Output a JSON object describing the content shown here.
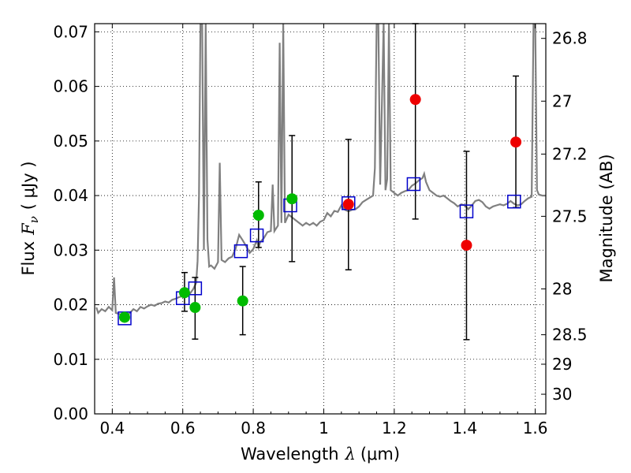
{
  "chart_data": {
    "type": "scatter",
    "title": "",
    "xlabel": "Wavelength",
    "xlabel_symbol": "λ",
    "xlabel_unit": "(μm)",
    "ylabel": "Flux",
    "ylabel_symbol": "F",
    "ylabel_sub": "ν",
    "ylabel_unit": "( μJy )",
    "y2label": "Magnitude (AB)",
    "xlim": [
      0.35,
      1.63
    ],
    "ylim": [
      0.0,
      0.0715
    ],
    "grid": true,
    "x_ticks": [
      {
        "value": 0.4,
        "label": "0.4"
      },
      {
        "value": 0.6,
        "label": "0.6"
      },
      {
        "value": 0.8,
        "label": "0.8"
      },
      {
        "value": 1.0,
        "label": "1"
      },
      {
        "value": 1.2,
        "label": "1.2"
      },
      {
        "value": 1.4,
        "label": "1.4"
      },
      {
        "value": 1.6,
        "label": "1.6"
      }
    ],
    "y_ticks": [
      {
        "value": 0.0,
        "label": "0.00"
      },
      {
        "value": 0.01,
        "label": "0.01"
      },
      {
        "value": 0.02,
        "label": "0.02"
      },
      {
        "value": 0.03,
        "label": "0.03"
      },
      {
        "value": 0.04,
        "label": "0.04"
      },
      {
        "value": 0.05,
        "label": "0.05"
      },
      {
        "value": 0.06,
        "label": "0.06"
      },
      {
        "value": 0.07,
        "label": "0.07"
      }
    ],
    "y2_ticks": [
      {
        "flux": 0.0688,
        "label": "26.8"
      },
      {
        "flux": 0.0573,
        "label": "27"
      },
      {
        "flux": 0.0476,
        "label": "27.2"
      },
      {
        "flux": 0.0362,
        "label": "27.5"
      },
      {
        "flux": 0.0229,
        "label": "28"
      },
      {
        "flux": 0.0145,
        "label": "28.5"
      },
      {
        "flux": 0.0091,
        "label": "29"
      },
      {
        "flux": 0.0036,
        "label": "30"
      }
    ],
    "series": [
      {
        "kind": "line",
        "color": "#808080",
        "points": [
          [
            0.355,
            0.0195
          ],
          [
            0.36,
            0.0185
          ],
          [
            0.37,
            0.0192
          ],
          [
            0.38,
            0.0188
          ],
          [
            0.39,
            0.0196
          ],
          [
            0.4,
            0.019
          ],
          [
            0.405,
            0.025
          ],
          [
            0.41,
            0.0185
          ],
          [
            0.42,
            0.0183
          ],
          [
            0.43,
            0.018
          ],
          [
            0.44,
            0.0178
          ],
          [
            0.45,
            0.0185
          ],
          [
            0.46,
            0.0192
          ],
          [
            0.47,
            0.0188
          ],
          [
            0.48,
            0.0196
          ],
          [
            0.49,
            0.0193
          ],
          [
            0.5,
            0.0197
          ],
          [
            0.51,
            0.02
          ],
          [
            0.52,
            0.0198
          ],
          [
            0.53,
            0.0202
          ],
          [
            0.54,
            0.0203
          ],
          [
            0.55,
            0.0206
          ],
          [
            0.56,
            0.0204
          ],
          [
            0.57,
            0.0209
          ],
          [
            0.58,
            0.0211
          ],
          [
            0.59,
            0.0214
          ],
          [
            0.6,
            0.0216
          ],
          [
            0.61,
            0.0224
          ],
          [
            0.62,
            0.022
          ],
          [
            0.63,
            0.0229
          ],
          [
            0.638,
            0.024
          ],
          [
            0.642,
            0.028
          ],
          [
            0.646,
            0.04
          ],
          [
            0.65,
            0.0715
          ],
          [
            0.655,
            0.0715
          ],
          [
            0.66,
            0.03
          ],
          [
            0.665,
            0.0715
          ],
          [
            0.67,
            0.032
          ],
          [
            0.675,
            0.027
          ],
          [
            0.68,
            0.0272
          ],
          [
            0.69,
            0.0266
          ],
          [
            0.7,
            0.0278
          ],
          [
            0.705,
            0.046
          ],
          [
            0.71,
            0.0282
          ],
          [
            0.72,
            0.0278
          ],
          [
            0.73,
            0.0285
          ],
          [
            0.74,
            0.0288
          ],
          [
            0.75,
            0.0303
          ],
          [
            0.76,
            0.0328
          ],
          [
            0.77,
            0.0318
          ],
          [
            0.78,
            0.0307
          ],
          [
            0.79,
            0.0295
          ],
          [
            0.8,
            0.0302
          ],
          [
            0.81,
            0.0318
          ],
          [
            0.815,
            0.0305
          ],
          [
            0.82,
            0.0315
          ],
          [
            0.83,
            0.0322
          ],
          [
            0.84,
            0.0333
          ],
          [
            0.85,
            0.0335
          ],
          [
            0.855,
            0.042
          ],
          [
            0.86,
            0.0335
          ],
          [
            0.87,
            0.0345
          ],
          [
            0.875,
            0.068
          ],
          [
            0.88,
            0.035
          ],
          [
            0.885,
            0.0715
          ],
          [
            0.89,
            0.035
          ],
          [
            0.9,
            0.0365
          ],
          [
            0.91,
            0.036
          ],
          [
            0.92,
            0.0355
          ],
          [
            0.93,
            0.035
          ],
          [
            0.94,
            0.0345
          ],
          [
            0.95,
            0.035
          ],
          [
            0.96,
            0.0346
          ],
          [
            0.97,
            0.035
          ],
          [
            0.98,
            0.0345
          ],
          [
            0.99,
            0.0352
          ],
          [
            1.0,
            0.0355
          ],
          [
            1.01,
            0.0368
          ],
          [
            1.02,
            0.0362
          ],
          [
            1.03,
            0.0372
          ],
          [
            1.04,
            0.037
          ],
          [
            1.05,
            0.0382
          ],
          [
            1.06,
            0.0374
          ],
          [
            1.07,
            0.0371
          ],
          [
            1.08,
            0.0374
          ],
          [
            1.09,
            0.0375
          ],
          [
            1.1,
            0.038
          ],
          [
            1.11,
            0.0388
          ],
          [
            1.12,
            0.0392
          ],
          [
            1.13,
            0.0396
          ],
          [
            1.14,
            0.04
          ],
          [
            1.145,
            0.045
          ],
          [
            1.15,
            0.0715
          ],
          [
            1.155,
            0.0715
          ],
          [
            1.16,
            0.042
          ],
          [
            1.17,
            0.0715
          ],
          [
            1.175,
            0.041
          ],
          [
            1.18,
            0.043
          ],
          [
            1.185,
            0.0715
          ],
          [
            1.19,
            0.041
          ],
          [
            1.2,
            0.0405
          ],
          [
            1.21,
            0.04
          ],
          [
            1.22,
            0.0405
          ],
          [
            1.23,
            0.0408
          ],
          [
            1.24,
            0.041
          ],
          [
            1.25,
            0.0418
          ],
          [
            1.26,
            0.0422
          ],
          [
            1.27,
            0.0428
          ],
          [
            1.28,
            0.0432
          ],
          [
            1.285,
            0.044
          ],
          [
            1.29,
            0.0425
          ],
          [
            1.3,
            0.041
          ],
          [
            1.31,
            0.0405
          ],
          [
            1.32,
            0.04
          ],
          [
            1.33,
            0.0398
          ],
          [
            1.34,
            0.04
          ],
          [
            1.35,
            0.0395
          ],
          [
            1.36,
            0.039
          ],
          [
            1.37,
            0.0386
          ],
          [
            1.38,
            0.038
          ],
          [
            1.39,
            0.0384
          ],
          [
            1.4,
            0.0382
          ],
          [
            1.41,
            0.0375
          ],
          [
            1.42,
            0.0382
          ],
          [
            1.43,
            0.039
          ],
          [
            1.44,
            0.0392
          ],
          [
            1.45,
            0.0388
          ],
          [
            1.46,
            0.038
          ],
          [
            1.47,
            0.0376
          ],
          [
            1.48,
            0.038
          ],
          [
            1.49,
            0.0382
          ],
          [
            1.5,
            0.0384
          ],
          [
            1.51,
            0.0382
          ],
          [
            1.52,
            0.0385
          ],
          [
            1.53,
            0.039
          ],
          [
            1.54,
            0.0385
          ],
          [
            1.55,
            0.0382
          ],
          [
            1.56,
            0.0384
          ],
          [
            1.57,
            0.039
          ],
          [
            1.58,
            0.0395
          ],
          [
            1.59,
            0.0398
          ],
          [
            1.595,
            0.0715
          ],
          [
            1.6,
            0.0715
          ],
          [
            1.605,
            0.041
          ],
          [
            1.61,
            0.0402
          ],
          [
            1.62,
            0.04
          ],
          [
            1.63,
            0.04
          ]
        ]
      },
      {
        "kind": "markers",
        "marker": "square",
        "color": "#0000cc",
        "points": [
          [
            0.435,
            0.0175
          ],
          [
            0.6,
            0.0212
          ],
          [
            0.635,
            0.023
          ],
          [
            0.765,
            0.0298
          ],
          [
            0.81,
            0.0327
          ],
          [
            0.905,
            0.0382
          ],
          [
            1.07,
            0.0386
          ],
          [
            1.255,
            0.0421
          ],
          [
            1.405,
            0.0371
          ],
          [
            1.54,
            0.0389
          ]
        ]
      },
      {
        "kind": "markers",
        "marker": "circle",
        "color": "#00bb00",
        "points": [
          {
            "x": 0.435,
            "y": 0.0177
          },
          {
            "x": 0.605,
            "y": 0.0222,
            "yerr_low": 0.0188,
            "yerr_high": 0.0259
          },
          {
            "x": 0.635,
            "y": 0.0195,
            "yerr_low": 0.0137,
            "yerr_high": 0.025
          },
          {
            "x": 0.77,
            "y": 0.0207,
            "yerr_low": 0.0145,
            "yerr_high": 0.027
          },
          {
            "x": 0.815,
            "y": 0.0364,
            "yerr_low": 0.0305,
            "yerr_high": 0.0425
          },
          {
            "x": 0.91,
            "y": 0.0394,
            "yerr_low": 0.0279,
            "yerr_high": 0.051
          }
        ]
      },
      {
        "kind": "markers",
        "marker": "circle",
        "color": "#ee0000",
        "points": [
          {
            "x": 1.07,
            "y": 0.0384,
            "yerr_low": 0.0264,
            "yerr_high": 0.0503
          },
          {
            "x": 1.26,
            "y": 0.0576,
            "yerr_low": 0.0357,
            "yerr_high": 0.0715
          },
          {
            "x": 1.405,
            "y": 0.0309,
            "yerr_low": 0.0136,
            "yerr_high": 0.0481
          },
          {
            "x": 1.545,
            "y": 0.0498,
            "yerr_low": 0.0378,
            "yerr_high": 0.0619
          }
        ]
      }
    ]
  }
}
